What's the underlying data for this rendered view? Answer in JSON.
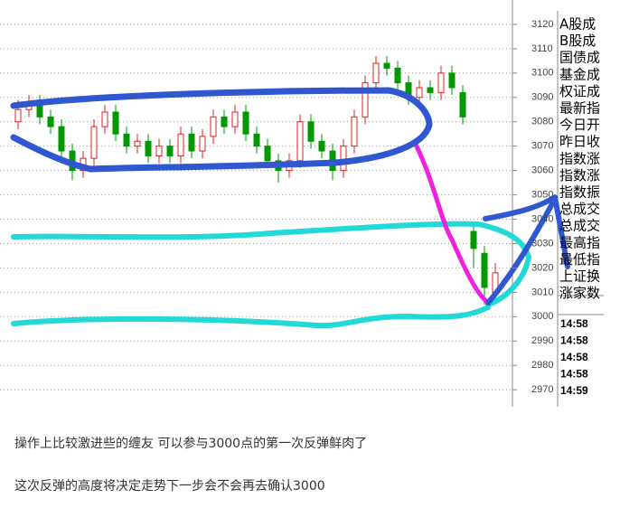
{
  "chart_data": {
    "type": "candlestick",
    "open": [
      3080,
      3085,
      3088,
      3082,
      3078,
      3068,
      3060,
      3065,
      3078,
      3084,
      3075,
      3070,
      3072,
      3066,
      3070,
      3066,
      3075,
      3068,
      3074,
      3082,
      3078,
      3084,
      3075,
      3070,
      3064,
      3060,
      3064,
      3080,
      3072,
      3068,
      3060,
      3070,
      3082,
      3096,
      3104,
      3102,
      3096,
      3090,
      3094,
      3092,
      3100,
      3092,
      3035,
      3026,
      3010
    ],
    "close": [
      3085,
      3088,
      3082,
      3078,
      3068,
      3060,
      3065,
      3078,
      3084,
      3075,
      3070,
      3072,
      3066,
      3070,
      3066,
      3075,
      3068,
      3074,
      3082,
      3078,
      3084,
      3075,
      3070,
      3064,
      3060,
      3064,
      3080,
      3072,
      3068,
      3060,
      3070,
      3082,
      3096,
      3104,
      3102,
      3096,
      3090,
      3094,
      3092,
      3100,
      3094,
      3082,
      3028,
      3012,
      3018
    ],
    "high": [
      3089,
      3091,
      3091,
      3085,
      3081,
      3071,
      3068,
      3081,
      3087,
      3087,
      3078,
      3075,
      3075,
      3073,
      3073,
      3078,
      3078,
      3077,
      3085,
      3085,
      3087,
      3087,
      3078,
      3073,
      3067,
      3067,
      3083,
      3083,
      3075,
      3071,
      3073,
      3085,
      3099,
      3107,
      3107,
      3105,
      3099,
      3097,
      3097,
      3103,
      3103,
      3095,
      3038,
      3029,
      3022
    ],
    "low": [
      3077,
      3082,
      3079,
      3075,
      3065,
      3056,
      3057,
      3062,
      3075,
      3072,
      3067,
      3067,
      3063,
      3063,
      3063,
      3063,
      3065,
      3065,
      3071,
      3075,
      3075,
      3072,
      3067,
      3061,
      3055,
      3057,
      3061,
      3069,
      3065,
      3056,
      3057,
      3067,
      3079,
      3093,
      3099,
      3093,
      3087,
      3087,
      3089,
      3089,
      3091,
      3079,
      3020,
      3005,
      3006
    ],
    "up_color": "#e02020",
    "down_color": "#009900",
    "ylim": [
      2963,
      3130
    ],
    "yticks": [
      2970,
      2980,
      2990,
      3000,
      3010,
      3020,
      3030,
      3040,
      3050,
      3060,
      3070,
      3080,
      3090,
      3100,
      3110,
      3120
    ],
    "grid": true
  },
  "side_labels": [
    "A股成",
    "B股成",
    "国债成",
    "基金成",
    "权证成",
    "最新指",
    "今日开",
    "昨日收",
    "指数涨",
    "指数涨",
    "指数振",
    "总成交",
    "总成交",
    "最高指",
    "最低指",
    "上证换",
    "涨家数"
  ],
  "times": [
    "14:58",
    "14:58",
    "14:58",
    "14:58",
    "14:59"
  ],
  "post_text": [
    "操作上比较激进些的缠友 可以参与3000点的第一次反弹鲜肉了",
    "这次反弹的高度将决定走势下一步会不会再去确认3000"
  ]
}
